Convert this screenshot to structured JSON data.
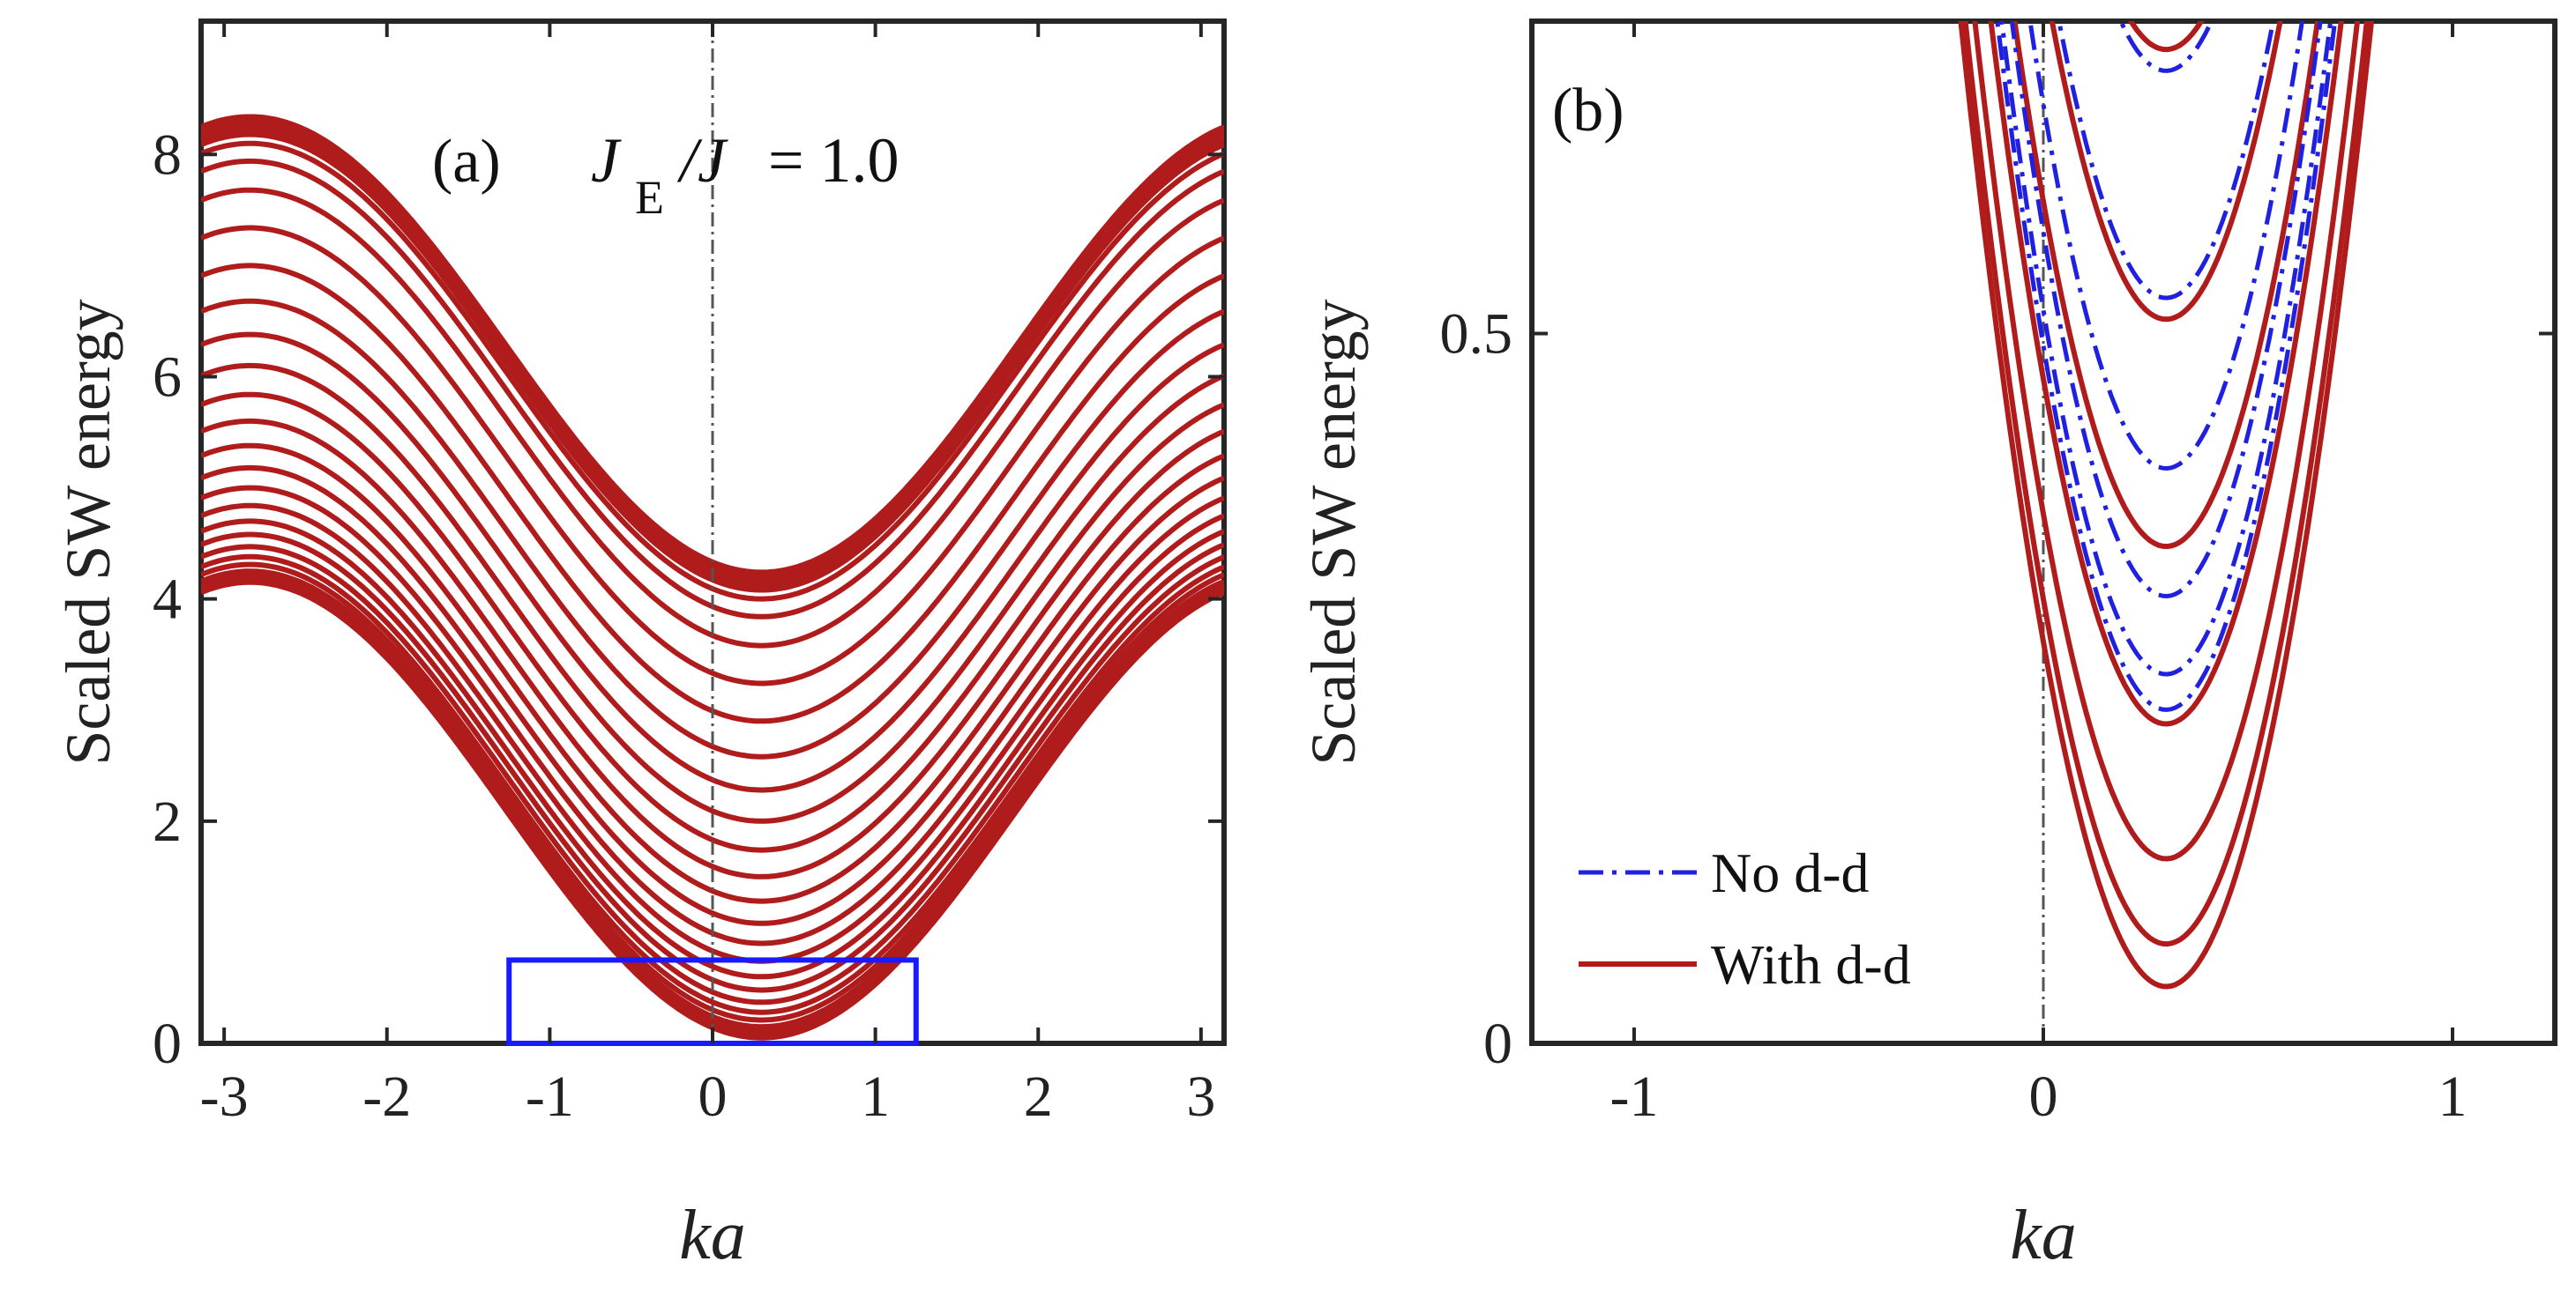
{
  "chart_data": [
    {
      "type": "line",
      "panel_label": "(a)",
      "annotation": {
        "J": "J",
        "sub": "E",
        "rest": "/J",
        "value": "= 1.0"
      },
      "xlabel": "ka",
      "ylabel": "Scaled SW energy",
      "xlim": [
        -3.1416,
        3.1416
      ],
      "ylim": [
        0,
        9.2
      ],
      "xticks": [
        -3,
        -2,
        -1,
        0,
        1,
        2,
        3
      ],
      "xtick_labels": [
        "-3",
        "-2",
        "-1",
        "0",
        "1",
        "2",
        "3"
      ],
      "yticks": [
        0,
        2,
        4,
        6,
        8
      ],
      "ytick_labels": [
        "0",
        "2",
        "4",
        "6",
        "8"
      ],
      "grid": false,
      "vline_x": 0,
      "k_shift": 0.3,
      "band_minima": [
        0.05,
        0.06,
        0.08,
        0.11,
        0.15,
        0.21,
        0.28,
        0.37,
        0.48,
        0.6,
        0.74,
        0.9,
        1.08,
        1.28,
        1.5,
        1.74,
        2.0,
        2.28,
        2.58,
        2.9,
        3.24,
        3.58,
        3.84,
        4.0,
        4.08,
        4.12,
        4.14,
        4.16,
        4.18,
        4.2,
        4.22,
        4.24
      ],
      "band_width": 4.1,
      "inset_box": {
        "x": [
          -1.25,
          1.25
        ],
        "y": [
          0,
          0.75
        ]
      },
      "series_color": "#b01c1c",
      "box_color": "#1a1aff"
    },
    {
      "type": "line",
      "panel_label": "(b)",
      "xlabel": "ka",
      "ylabel": "Scaled SW energy",
      "xlim": [
        -1.25,
        1.25
      ],
      "ylim": [
        0,
        0.72
      ],
      "xticks": [
        -1,
        0,
        1
      ],
      "xtick_labels": [
        "-1",
        "0",
        "1"
      ],
      "yticks": [
        0,
        0.5
      ],
      "ytick_labels": [
        "0",
        "0.5"
      ],
      "grid": false,
      "vline_x": 0,
      "k_shift": 0.3,
      "series": [
        {
          "name": "No d-d",
          "style": "dashdot",
          "color": "#2020e0",
          "minima": [
            0.235,
            0.26,
            0.315,
            0.405,
            0.525,
            0.685
          ],
          "curvature": 2.85
        },
        {
          "name": "With d-d",
          "style": "solid",
          "color": "#b01c1c",
          "minima": [
            0.04,
            0.07,
            0.13,
            0.225,
            0.35,
            0.51,
            0.7
          ],
          "curvature": 2.7
        }
      ]
    }
  ]
}
